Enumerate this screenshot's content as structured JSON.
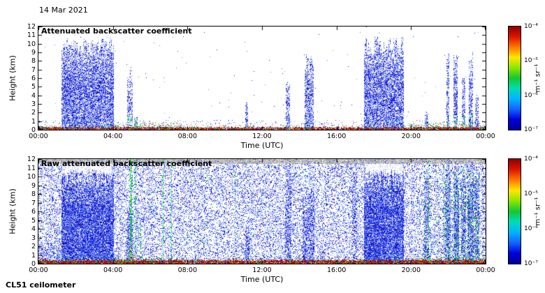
{
  "header": {
    "date": "14 Mar 2021"
  },
  "footer": {
    "instrument": "CL51 ceilometer"
  },
  "palette": {
    "blues": [
      "#1414dc",
      "#0000c8",
      "#3c5af0",
      "#2828a0",
      "#5078ff",
      "#7c96ff"
    ],
    "greens": [
      "#00b43c",
      "#00dc50",
      "#32c814"
    ],
    "warm": [
      "#ffdc00",
      "#ff8c00",
      "#e11e00",
      "#8c0000"
    ],
    "grays": [
      "#b4b4b4",
      "#c8c8c8",
      "#a0a0a0"
    ],
    "cyan": "#00c8e6"
  },
  "colorbar": {
    "label": "m⁻¹ sr⁻¹",
    "ticks": [
      "10⁻⁴",
      "10⁻⁵",
      "10⁻⁶",
      "10⁻⁷"
    ],
    "scale": "log",
    "gradient": [
      "#8c0000",
      "#dc1400",
      "#ff7800",
      "#ffe600",
      "#8ce600",
      "#14c832",
      "#00dcb4",
      "#00b4ff",
      "#1464ff",
      "#0000dc",
      "#000096"
    ]
  },
  "chart_data": [
    {
      "type": "heatmap",
      "title": "Attenuated backscatter coefficient",
      "xlabel": "Time (UTC)",
      "ylabel": "Height (km)",
      "x_ticks": [
        "00:00",
        "04:00",
        "08:00",
        "12:00",
        "16:00",
        "20:00",
        "00:00"
      ],
      "y_ticks": [
        0,
        1,
        2,
        3,
        4,
        5,
        6,
        7,
        8,
        9,
        10,
        11,
        12
      ],
      "x_range_hours": [
        0,
        24
      ],
      "y_range_km": [
        0,
        12
      ],
      "colorbar_ticks": [
        "10⁻⁴",
        "10⁻⁵",
        "10⁻⁶",
        "10⁻⁷"
      ],
      "colorbar_label": "m⁻¹ sr⁻¹",
      "features": {
        "seed": 7,
        "base_noise_density": 0.0015,
        "low_noise": {
          "zmax": 1.1,
          "density": 0.05
        },
        "clouds": [
          {
            "t0": 1.25,
            "t1": 4.05,
            "zmax": 10.4,
            "density": 0.62
          },
          {
            "t0": 4.8,
            "t1": 5.05,
            "zmax": 7.0,
            "density": 0.4,
            "green_base": true
          },
          {
            "t0": 5.15,
            "t1": 5.3,
            "zmax": 1.6,
            "density": 0.5,
            "green_base": true
          },
          {
            "t0": 11.1,
            "t1": 11.25,
            "zmax": 3.4,
            "density": 0.45
          },
          {
            "t0": 13.3,
            "t1": 13.5,
            "zmax": 5.5,
            "density": 0.5
          },
          {
            "t0": 14.3,
            "t1": 14.75,
            "zmax": 8.4,
            "density": 0.55
          },
          {
            "t0": 17.5,
            "t1": 19.6,
            "zmax": 10.4,
            "density": 0.62
          },
          {
            "t0": 20.75,
            "t1": 20.9,
            "zmax": 2.2,
            "density": 0.45
          },
          {
            "t0": 21.9,
            "t1": 22.05,
            "zmax": 8.8,
            "density": 0.5,
            "green_base": true
          },
          {
            "t0": 22.3,
            "t1": 22.5,
            "zmax": 9.2,
            "density": 0.55,
            "green_base": true
          },
          {
            "t0": 22.75,
            "t1": 22.9,
            "zmax": 6.5,
            "density": 0.45,
            "green_base": true
          },
          {
            "t0": 23.1,
            "t1": 23.3,
            "zmax": 9.0,
            "density": 0.5,
            "green_base": true
          },
          {
            "t0": 23.45,
            "t1": 23.6,
            "zmax": 4.0,
            "density": 0.45
          }
        ],
        "rough_surface": [
          {
            "t0": 0.0,
            "t1": 1.25,
            "zmax": 0.5
          },
          {
            "t0": 4.1,
            "t1": 7.7,
            "zmax": 0.95
          },
          {
            "t0": 10.9,
            "t1": 11.6,
            "zmax": 0.6
          },
          {
            "t0": 19.8,
            "t1": 24.0,
            "zmax": 0.95
          }
        ],
        "surface": {
          "base_height": 0.28,
          "speck_height": 0.55,
          "density": 0.85
        }
      }
    },
    {
      "type": "heatmap",
      "title": "Raw attenuated backscatter coefficient",
      "xlabel": "Time (UTC)",
      "ylabel": "Height (km)",
      "x_ticks": [
        "00:00",
        "04:00",
        "08:00",
        "12:00",
        "16:00",
        "20:00",
        "00:00"
      ],
      "y_ticks": [
        0,
        1,
        2,
        3,
        4,
        5,
        6,
        7,
        8,
        9,
        10,
        11,
        12
      ],
      "x_range_hours": [
        0,
        24
      ],
      "y_range_km": [
        0,
        12
      ],
      "colorbar_ticks": [
        "10⁻⁴",
        "10⁻⁵",
        "10⁻⁶",
        "10⁻⁷"
      ],
      "colorbar_label": "m⁻¹ sr⁻¹",
      "features": {
        "seed": 13,
        "base_noise_density": 0.3,
        "gray_band": {
          "z0": 11.45,
          "z1": 12.0,
          "density": 0.8
        },
        "clear_zones": [
          {
            "t0": 1.3,
            "t1": 4.0,
            "z0": 10.3,
            "z1": 11.4
          },
          {
            "t0": 17.55,
            "t1": 19.55,
            "z0": 10.3,
            "z1": 11.4
          }
        ],
        "clouds": [
          {
            "t0": 0.0,
            "t1": 1.3,
            "zmax": 2.2,
            "density": 0.3
          },
          {
            "t0": 1.25,
            "t1": 4.05,
            "zmax": 10.4,
            "density": 0.8
          },
          {
            "t0": 4.8,
            "t1": 5.05,
            "zmax": 7.0,
            "density": 0.5,
            "green_base": true
          },
          {
            "t0": 11.1,
            "t1": 11.3,
            "zmax": 4.0,
            "density": 0.45
          },
          {
            "t0": 13.25,
            "t1": 13.55,
            "zmax": 11.2,
            "density": 0.4
          },
          {
            "t0": 14.2,
            "t1": 14.8,
            "zmax": 9.0,
            "density": 0.45
          },
          {
            "t0": 16.85,
            "t1": 17.05,
            "zmax": 11.0,
            "density": 0.35
          },
          {
            "t0": 17.5,
            "t1": 19.6,
            "zmax": 10.4,
            "density": 0.8
          },
          {
            "t0": 20.7,
            "t1": 20.95,
            "zmax": 11.2,
            "density": 0.4,
            "green_mix": 0.2
          },
          {
            "t0": 21.85,
            "t1": 22.1,
            "zmax": 11.4,
            "density": 0.55,
            "green_mix": 0.25
          },
          {
            "t0": 22.3,
            "t1": 22.55,
            "zmax": 11.4,
            "density": 0.6,
            "green_mix": 0.25
          },
          {
            "t0": 22.7,
            "t1": 22.95,
            "zmax": 11.4,
            "density": 0.5,
            "green_mix": 0.3
          },
          {
            "t0": 23.05,
            "t1": 23.35,
            "zmax": 11.4,
            "density": 0.55,
            "green_mix": 0.25
          },
          {
            "t0": 23.4,
            "t1": 23.65,
            "zmax": 11.4,
            "density": 0.5,
            "green_mix": 0.3
          }
        ],
        "green_streaks": [
          {
            "t": 4.92,
            "w": 3,
            "zmax": 12,
            "yellow": true
          },
          {
            "t": 5.22,
            "w": 1,
            "zmax": 12
          },
          {
            "t": 5.5,
            "w": 1,
            "zmax": 4
          },
          {
            "t": 6.7,
            "w": 1,
            "zmax": 12
          },
          {
            "t": 7.15,
            "w": 1,
            "zmax": 12
          },
          {
            "t": 9.05,
            "w": 1,
            "zmax": 12,
            "faint": true
          },
          {
            "t": 10.55,
            "w": 1,
            "zmax": 12,
            "faint": true
          },
          {
            "t": 20.95,
            "w": 1,
            "zmax": 12
          },
          {
            "t": 21.4,
            "w": 1,
            "zmax": 12,
            "faint": true
          },
          {
            "t": 21.75,
            "w": 1,
            "zmax": 12
          }
        ],
        "rough_surface": [
          {
            "t0": 4.1,
            "t1": 7.7,
            "zmax": 1.0
          },
          {
            "t0": 10.9,
            "t1": 11.6,
            "zmax": 0.7
          },
          {
            "t0": 13.2,
            "t1": 13.6,
            "zmax": 0.8
          },
          {
            "t0": 19.8,
            "t1": 24.0,
            "zmax": 1.1
          }
        ],
        "surface": {
          "base_height": 0.4,
          "speck_height": 0.7,
          "density": 0.9
        }
      }
    }
  ]
}
